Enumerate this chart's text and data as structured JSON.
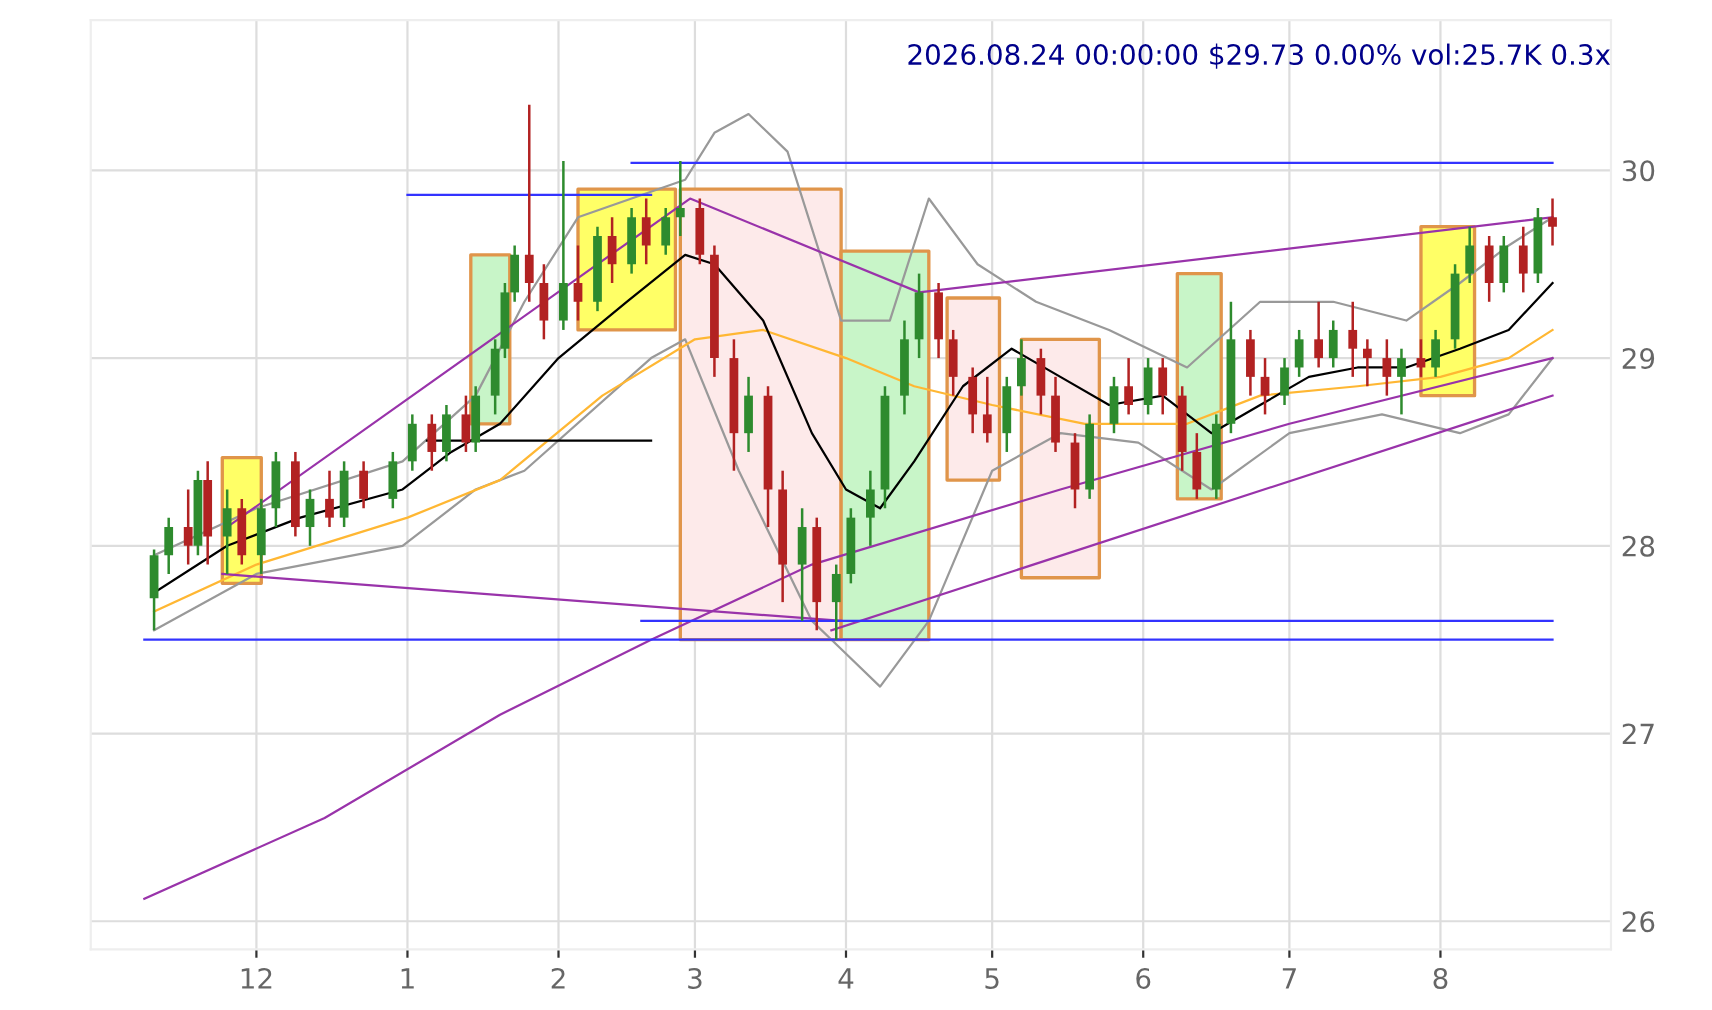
{
  "chart_data": {
    "type": "candlestick",
    "title": "2026.08.24 00:00:00 $29.73 0.00% vol:25.7K 0.3x",
    "xlim": [
      "2025-10-28",
      "2026-09-05"
    ],
    "ylim": [
      25.85,
      30.8
    ],
    "xticks": [
      {
        "value": "2025-12-01",
        "label": "12"
      },
      {
        "value": "2026-01-01",
        "label": "1"
      },
      {
        "value": "2026-02-01",
        "label": "2"
      },
      {
        "value": "2026-03-01",
        "label": "3"
      },
      {
        "value": "2026-04-01",
        "label": "4"
      },
      {
        "value": "2026-05-01",
        "label": "5"
      },
      {
        "value": "2026-06-01",
        "label": "6"
      },
      {
        "value": "2026-07-01",
        "label": "7"
      },
      {
        "value": "2026-08-01",
        "label": "8"
      }
    ],
    "yticks": [
      26,
      27,
      28,
      29,
      30
    ],
    "grid": true,
    "series": [
      {
        "type": "area",
        "color": "#ffff66",
        "colors": [
          "#e0954a",
          "#e0954a",
          "#e0954a",
          "#e0954a",
          "#e0954a"
        ],
        "x": [
          "2025-11-24",
          "2025-11-24",
          "2025-12-02",
          "2025-12-02",
          "2025-11-24"
        ],
        "values": [
          27.8,
          28.47,
          28.47,
          27.8,
          27.8
        ]
      },
      {
        "type": "area",
        "color": "#c8f5c8",
        "colors": [
          "#e0954a",
          "#e0954a",
          "#e0954a",
          "#e0954a",
          "#e0954a"
        ],
        "x": [
          "2026-01-14",
          "2026-01-14",
          "2026-01-22",
          "2026-01-22",
          "2026-01-14"
        ],
        "values": [
          28.65,
          29.55,
          29.55,
          28.65,
          28.65
        ]
      },
      {
        "type": "area",
        "color": "#ffff66",
        "colors": [
          "#e0954a",
          "#e0954a",
          "#e0954a",
          "#e0954a",
          "#e0954a"
        ],
        "x": [
          "2026-02-05",
          "2026-02-05",
          "2026-02-25",
          "2026-02-25",
          "2026-02-05"
        ],
        "values": [
          29.15,
          29.9,
          29.9,
          29.15,
          29.15
        ]
      },
      {
        "type": "area",
        "color": "#fdeaea",
        "colors": [
          "#e0954a",
          "#e0954a",
          "#e0954a",
          "#e0954a",
          "#e0954a"
        ],
        "x": [
          "2026-02-26",
          "2026-02-26",
          "2026-03-31",
          "2026-03-31",
          "2026-02-26"
        ],
        "values": [
          27.5,
          29.9,
          29.9,
          27.5,
          27.5
        ]
      },
      {
        "type": "area",
        "color": "#c8f5c8",
        "colors": [
          "#e0954a",
          "#e0954a",
          "#e0954a",
          "#e0954a",
          "#e0954a"
        ],
        "x": [
          "2026-03-31",
          "2026-03-31",
          "2026-04-18",
          "2026-04-18",
          "2026-03-31"
        ],
        "values": [
          27.5,
          29.57,
          29.57,
          27.5,
          27.5
        ]
      },
      {
        "type": "area",
        "color": "#fdeaea",
        "colors": [
          "#e0954a",
          "#e0954a",
          "#e0954a",
          "#e0954a",
          "#e0954a"
        ],
        "x": [
          "2026-04-21T18:00",
          "2026-04-21T18:00",
          "2026-05-02T12:00",
          "2026-05-02T12:00",
          "2026-04-21T18:00"
        ],
        "values": [
          28.35,
          29.32,
          29.32,
          28.35,
          28.35
        ]
      },
      {
        "type": "area",
        "color": "#fdeaea",
        "colors": [
          "#e0954a",
          "#e0954a",
          "#e0954a",
          "#e0954a",
          "#e0954a"
        ],
        "x": [
          "2026-05-07",
          "2026-05-07",
          "2026-05-23",
          "2026-05-23",
          "2026-05-07"
        ],
        "values": [
          27.83,
          29.1,
          29.1,
          27.83,
          27.83
        ]
      },
      {
        "type": "area",
        "color": "#c8f5c8",
        "colors": [
          "#e0954a",
          "#e0954a",
          "#e0954a",
          "#e0954a",
          "#e0954a"
        ],
        "x": [
          "2026-06-08",
          "2026-06-08",
          "2026-06-17",
          "2026-06-17",
          "2026-06-08"
        ],
        "values": [
          28.25,
          29.45,
          29.45,
          28.25,
          28.25
        ]
      },
      {
        "type": "area",
        "color": "#ffff66",
        "colors": [
          "#e0954a",
          "#e0954a",
          "#e0954a",
          "#e0954a",
          "#e0954a"
        ],
        "x": [
          "2026-07-28",
          "2026-07-28",
          "2026-08-08",
          "2026-08-08",
          "2026-07-28"
        ],
        "values": [
          28.8,
          29.7,
          29.7,
          28.8,
          28.8
        ]
      },
      {
        "type": "line",
        "color": "#999999",
        "x": [
          "2025-11-10",
          "2025-12-01",
          "2025-12-31",
          "2026-01-15",
          "2026-01-25",
          "2026-02-05",
          "2026-02-27",
          "2026-03-05",
          "2026-03-12",
          "2026-03-20",
          "2026-03-31",
          "2026-04-10",
          "2026-04-18",
          "2026-04-28",
          "2026-05-10",
          "2026-05-25",
          "2026-06-10",
          "2026-06-25",
          "2026-07-10",
          "2026-07-25",
          "2026-08-05",
          "2026-08-15",
          "2026-08-24"
        ],
        "values": [
          27.95,
          28.2,
          28.45,
          28.8,
          29.3,
          29.75,
          29.95,
          30.2,
          30.3,
          30.1,
          29.2,
          29.2,
          29.85,
          29.5,
          29.3,
          29.15,
          28.95,
          29.3,
          29.3,
          29.2,
          29.4,
          29.6,
          29.75
        ]
      },
      {
        "type": "line",
        "color": "#999999",
        "x": [
          "2025-11-10",
          "2025-12-01",
          "2025-12-31",
          "2026-01-15",
          "2026-01-25",
          "2026-02-20",
          "2026-02-27",
          "2026-03-10",
          "2026-03-25",
          "2026-03-31",
          "2026-04-08",
          "2026-04-18",
          "2026-05-01",
          "2026-05-15",
          "2026-05-31",
          "2026-06-15",
          "2026-07-01",
          "2026-07-20",
          "2026-08-05",
          "2026-08-15",
          "2026-08-24"
        ],
        "values": [
          27.55,
          27.85,
          28.0,
          28.3,
          28.4,
          29.0,
          29.1,
          28.4,
          27.6,
          27.45,
          27.25,
          27.6,
          28.4,
          28.6,
          28.55,
          28.3,
          28.6,
          28.7,
          28.6,
          28.7,
          29.0
        ]
      },
      {
        "type": "line",
        "color": "#ffb733",
        "x": [
          "2025-11-10",
          "2025-12-01",
          "2026-01-01",
          "2026-01-20",
          "2026-02-10",
          "2026-03-01",
          "2026-03-15",
          "2026-04-01",
          "2026-04-15",
          "2026-05-01",
          "2026-05-20",
          "2026-06-10",
          "2026-06-25",
          "2026-07-15",
          "2026-08-01",
          "2026-08-15",
          "2026-08-24"
        ],
        "values": [
          27.65,
          27.9,
          28.15,
          28.35,
          28.8,
          29.1,
          29.15,
          29.0,
          28.85,
          28.75,
          28.65,
          28.65,
          28.8,
          28.85,
          28.9,
          29.0,
          29.15
        ]
      },
      {
        "type": "line",
        "color": "#000000",
        "x": [
          "2025-11-10",
          "2025-11-25",
          "2025-12-10",
          "2025-12-31",
          "2026-01-10",
          "2026-01-20",
          "2026-02-01",
          "2026-02-15",
          "2026-02-27",
          "2026-03-05",
          "2026-03-15",
          "2026-03-25",
          "2026-04-01",
          "2026-04-08",
          "2026-04-15",
          "2026-04-25",
          "2026-05-05",
          "2026-05-15",
          "2026-05-25",
          "2026-06-05",
          "2026-06-15",
          "2026-06-25",
          "2026-07-05",
          "2026-07-15",
          "2026-07-25",
          "2026-08-05",
          "2026-08-15",
          "2026-08-24"
        ],
        "values": [
          27.75,
          28.0,
          28.15,
          28.3,
          28.5,
          28.65,
          29.0,
          29.3,
          29.55,
          29.5,
          29.2,
          28.6,
          28.3,
          28.2,
          28.45,
          28.85,
          29.05,
          28.9,
          28.75,
          28.8,
          28.6,
          28.75,
          28.9,
          28.95,
          28.95,
          29.05,
          29.15,
          29.4
        ]
      },
      {
        "type": "line",
        "color": "#000000",
        "x": [
          "2026-01-05",
          "2026-02-20"
        ],
        "values": [
          28.56,
          28.56
        ]
      },
      {
        "type": "line",
        "color": "#9933aa",
        "x": [
          "2025-11-08",
          "2025-12-15",
          "2026-01-20",
          "2026-02-20",
          "2026-03-25",
          "2026-05-15",
          "2026-07-01",
          "2026-08-24"
        ],
        "values": [
          26.12,
          26.55,
          27.1,
          27.5,
          27.9,
          28.3,
          28.65,
          29.0
        ]
      },
      {
        "type": "line",
        "color": "#9933aa",
        "x": [
          "2025-11-25",
          "2026-02-28",
          "2026-04-16",
          "2026-08-24"
        ],
        "values": [
          28.1,
          29.85,
          29.35,
          29.75
        ]
      },
      {
        "type": "line",
        "color": "#9933aa",
        "x": [
          "2025-11-24",
          "2026-03-31"
        ],
        "values": [
          27.85,
          27.6
        ]
      },
      {
        "type": "line",
        "color": "#9933aa",
        "x": [
          "2026-03-29",
          "2026-08-24"
        ],
        "values": [
          27.55,
          28.8
        ]
      },
      {
        "type": "line",
        "color": "#3333ff",
        "x": [
          "2026-01-01",
          "2026-02-20"
        ],
        "values": [
          29.87,
          29.87
        ]
      },
      {
        "type": "line",
        "color": "#3333ff",
        "x": [
          "2026-02-16",
          "2026-08-24"
        ],
        "values": [
          30.04,
          30.04
        ]
      },
      {
        "type": "line",
        "color": "#3333ff",
        "x": [
          "2026-02-18",
          "2026-08-24"
        ],
        "values": [
          27.6,
          27.6
        ]
      },
      {
        "type": "line",
        "color": "#3333ff",
        "x": [
          "2025-11-08",
          "2026-08-24"
        ],
        "values": [
          27.5,
          27.5
        ]
      },
      {
        "color": "#2e8b2e",
        "x": [
          "2025-11-10",
          "2025-11-13",
          "2025-11-19",
          "2025-11-25",
          "2025-12-02",
          "2025-12-05",
          "2025-12-12",
          "2025-12-19",
          "2025-12-29",
          "2026-01-02",
          "2026-01-09",
          "2026-01-15",
          "2026-01-19",
          "2026-01-21",
          "2026-01-23",
          "2026-02-02",
          "2026-02-09",
          "2026-02-16",
          "2026-02-23",
          "2026-02-26",
          "2026-03-12",
          "2026-03-23",
          "2026-03-30",
          "2026-04-02",
          "2026-04-06",
          "2026-04-09",
          "2026-04-13",
          "2026-04-16",
          "2026-05-04",
          "2026-05-07",
          "2026-05-21",
          "2026-05-26",
          "2026-06-02",
          "2026-06-16",
          "2026-06-19",
          "2026-06-30",
          "2026-07-03",
          "2026-07-10",
          "2026-07-24",
          "2026-07-31",
          "2026-08-04",
          "2026-08-07",
          "2026-08-14",
          "2026-08-21"
        ],
        "ohlc": [
          [
            27.72,
            27.98,
            27.55,
            27.95
          ],
          [
            27.95,
            28.15,
            27.85,
            28.1
          ],
          [
            28.0,
            28.4,
            27.95,
            28.35
          ],
          [
            28.05,
            28.3,
            27.85,
            28.2
          ],
          [
            27.95,
            28.25,
            27.85,
            28.2
          ],
          [
            28.2,
            28.5,
            28.1,
            28.45
          ],
          [
            28.1,
            28.3,
            28.0,
            28.25
          ],
          [
            28.15,
            28.45,
            28.1,
            28.4
          ],
          [
            28.25,
            28.5,
            28.2,
            28.45
          ],
          [
            28.45,
            28.7,
            28.4,
            28.65
          ],
          [
            28.5,
            28.75,
            28.45,
            28.7
          ],
          [
            28.55,
            28.85,
            28.5,
            28.8
          ],
          [
            28.8,
            29.1,
            28.7,
            29.05
          ],
          [
            29.05,
            29.4,
            29.0,
            29.35
          ],
          [
            29.35,
            29.6,
            29.3,
            29.55
          ],
          [
            29.2,
            30.05,
            29.15,
            29.4
          ],
          [
            29.3,
            29.7,
            29.25,
            29.65
          ],
          [
            29.5,
            29.8,
            29.45,
            29.75
          ],
          [
            29.6,
            29.8,
            29.55,
            29.75
          ],
          [
            29.75,
            30.05,
            29.65,
            29.8
          ],
          [
            28.6,
            28.9,
            28.5,
            28.8
          ],
          [
            27.9,
            28.2,
            27.6,
            28.1
          ],
          [
            27.7,
            27.9,
            27.5,
            27.85
          ],
          [
            27.85,
            28.2,
            27.8,
            28.15
          ],
          [
            28.15,
            28.4,
            28.0,
            28.3
          ],
          [
            28.3,
            28.85,
            28.2,
            28.8
          ],
          [
            28.8,
            29.2,
            28.7,
            29.1
          ],
          [
            29.1,
            29.45,
            29.0,
            29.35
          ],
          [
            28.6,
            28.9,
            28.5,
            28.85
          ],
          [
            28.85,
            29.1,
            28.8,
            29.0
          ],
          [
            28.3,
            28.7,
            28.25,
            28.65
          ],
          [
            28.65,
            28.9,
            28.6,
            28.85
          ],
          [
            28.75,
            29.0,
            28.7,
            28.95
          ],
          [
            28.3,
            28.7,
            28.25,
            28.65
          ],
          [
            28.65,
            29.3,
            28.6,
            29.1
          ],
          [
            28.8,
            29.0,
            28.75,
            28.95
          ],
          [
            28.95,
            29.15,
            28.9,
            29.1
          ],
          [
            29.0,
            29.2,
            28.95,
            29.15
          ],
          [
            28.9,
            29.05,
            28.7,
            29.0
          ],
          [
            28.95,
            29.15,
            28.9,
            29.1
          ],
          [
            29.1,
            29.5,
            29.05,
            29.45
          ],
          [
            29.45,
            29.7,
            29.4,
            29.6
          ],
          [
            29.4,
            29.65,
            29.35,
            29.6
          ],
          [
            29.45,
            29.8,
            29.4,
            29.75
          ]
        ]
      },
      {
        "color": "#b22222",
        "x": [
          "2025-11-17",
          "2025-11-21",
          "2025-11-28",
          "2025-12-09",
          "2025-12-16",
          "2025-12-23",
          "2026-01-06",
          "2026-01-13",
          "2026-01-26",
          "2026-01-29",
          "2026-02-05",
          "2026-02-12",
          "2026-02-19",
          "2026-03-02",
          "2026-03-05",
          "2026-03-09",
          "2026-03-16",
          "2026-03-19",
          "2026-03-26",
          "2026-04-20",
          "2026-04-23",
          "2026-04-27",
          "2026-04-30",
          "2026-05-11",
          "2026-05-14",
          "2026-05-18",
          "2026-05-29",
          "2026-06-05",
          "2026-06-09",
          "2026-06-12",
          "2026-06-23",
          "2026-06-26",
          "2026-07-07",
          "2026-07-14",
          "2026-07-17",
          "2026-07-21",
          "2026-07-28",
          "2026-08-11",
          "2026-08-18",
          "2026-08-24"
        ],
        "ohlc": [
          [
            28.1,
            28.3,
            27.9,
            28.0
          ],
          [
            28.35,
            28.45,
            27.9,
            28.05
          ],
          [
            28.2,
            28.25,
            27.9,
            27.95
          ],
          [
            28.45,
            28.5,
            28.05,
            28.1
          ],
          [
            28.25,
            28.4,
            28.1,
            28.15
          ],
          [
            28.4,
            28.45,
            28.2,
            28.25
          ],
          [
            28.65,
            28.7,
            28.4,
            28.5
          ],
          [
            28.7,
            28.8,
            28.5,
            28.55
          ],
          [
            29.55,
            30.35,
            29.3,
            29.4
          ],
          [
            29.4,
            29.5,
            29.1,
            29.2
          ],
          [
            29.4,
            29.6,
            29.2,
            29.3
          ],
          [
            29.65,
            29.75,
            29.4,
            29.5
          ],
          [
            29.75,
            29.85,
            29.5,
            29.6
          ],
          [
            29.8,
            29.85,
            29.5,
            29.55
          ],
          [
            29.55,
            29.6,
            28.9,
            29.0
          ],
          [
            29.0,
            29.1,
            28.4,
            28.6
          ],
          [
            28.8,
            28.85,
            28.1,
            28.3
          ],
          [
            28.3,
            28.4,
            27.7,
            27.9
          ],
          [
            28.1,
            28.15,
            27.55,
            27.7
          ],
          [
            29.35,
            29.4,
            29.0,
            29.1
          ],
          [
            29.1,
            29.15,
            28.8,
            28.9
          ],
          [
            28.9,
            28.95,
            28.6,
            28.7
          ],
          [
            28.7,
            28.9,
            28.55,
            28.6
          ],
          [
            29.0,
            29.05,
            28.7,
            28.8
          ],
          [
            28.8,
            28.9,
            28.5,
            28.55
          ],
          [
            28.55,
            28.6,
            28.2,
            28.3
          ],
          [
            28.85,
            29.0,
            28.7,
            28.75
          ],
          [
            28.95,
            29.0,
            28.7,
            28.8
          ],
          [
            28.8,
            28.85,
            28.4,
            28.5
          ],
          [
            28.5,
            28.6,
            28.25,
            28.3
          ],
          [
            29.1,
            29.15,
            28.8,
            28.9
          ],
          [
            28.9,
            29.0,
            28.7,
            28.8
          ],
          [
            29.1,
            29.3,
            28.95,
            29.0
          ],
          [
            29.15,
            29.3,
            28.9,
            29.05
          ],
          [
            29.05,
            29.1,
            28.85,
            29.0
          ],
          [
            29.0,
            29.1,
            28.8,
            28.9
          ],
          [
            29.0,
            29.1,
            28.9,
            28.95
          ],
          [
            29.6,
            29.65,
            29.3,
            29.4
          ],
          [
            29.6,
            29.7,
            29.35,
            29.45
          ],
          [
            29.75,
            29.85,
            29.6,
            29.7
          ]
        ]
      }
    ]
  }
}
